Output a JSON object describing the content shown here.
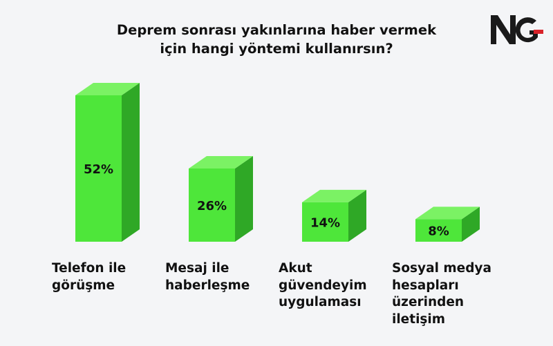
{
  "brand": {
    "logo_text": "NG",
    "colors": {
      "n": "#1a1a1a",
      "g_bar": "#d8232a"
    }
  },
  "chart_data": {
    "type": "bar",
    "title_lines": [
      "Deprem sonrası yakınlarına haber vermek",
      "için hangi yöntemi kullanırsın?"
    ],
    "categories": [
      [
        "Telefon ile",
        "görüşme"
      ],
      [
        "Mesaj ile",
        "haberleşme"
      ],
      [
        "Akut",
        "güvendeyim",
        "uygulaması"
      ],
      [
        "Sosyal medya",
        "hesapları",
        "üzerinden",
        "iletişim"
      ]
    ],
    "values": [
      52,
      26,
      14,
      8
    ],
    "value_labels": [
      "52%",
      "26%",
      "14%",
      "8%"
    ],
    "bar_style": "3d",
    "ylim": [
      0,
      52
    ],
    "grid": false,
    "colors": {
      "front": "#4ee63a",
      "top": "#7bf264",
      "side": "#2fa826"
    }
  }
}
